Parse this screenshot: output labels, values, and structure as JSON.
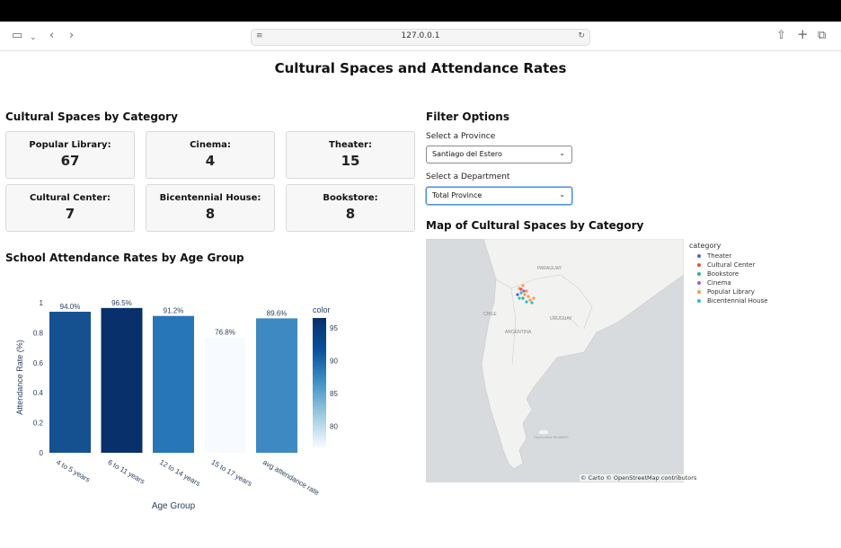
{
  "browser": {
    "url": "127.0.0.1"
  },
  "page_title": "Cultural Spaces and Attendance Rates",
  "categories_section": {
    "title": "Cultural Spaces by Category",
    "cards": [
      {
        "label": "Popular Library:",
        "value": "67"
      },
      {
        "label": "Cinema:",
        "value": "4"
      },
      {
        "label": "Theater:",
        "value": "15"
      },
      {
        "label": "Cultural Center:",
        "value": "7"
      },
      {
        "label": "Bicentennial House:",
        "value": "8"
      },
      {
        "label": "Bookstore:",
        "value": "8"
      }
    ]
  },
  "filters": {
    "title": "Filter Options",
    "province_label": "Select a Province",
    "province_value": "Santiago del Estero",
    "department_label": "Select a Department",
    "department_value": "Total Province"
  },
  "map_section": {
    "title": "Map of Cultural Spaces by Category",
    "labels": {
      "paraguay": "PARAGUAY",
      "chile": "CHILE",
      "uruguay": "URUGUAY",
      "argentina": "ARGENTINA",
      "falkland": "FALKLAND ISLANDS"
    },
    "attribution": "© Carto © OpenStreetMap contributors",
    "legend_title": "category",
    "legend": [
      {
        "name": "Theater",
        "color": "#4c67c9"
      },
      {
        "name": "Cultural Center",
        "color": "#e5533c"
      },
      {
        "name": "Bookstore",
        "color": "#27b38b"
      },
      {
        "name": "Cinema",
        "color": "#a95ad6"
      },
      {
        "name": "Popular Library",
        "color": "#f99b4b"
      },
      {
        "name": "Bicentennial House",
        "color": "#2fb7d9"
      }
    ]
  },
  "attendance_section": {
    "title": "School Attendance Rates by Age Group"
  },
  "chart_data": {
    "type": "bar",
    "categories": [
      "4 to 5 years",
      "6 to 11 years",
      "12 to 14 years",
      "15 to 17 years",
      "avg attendance rate"
    ],
    "values": [
      0.94,
      0.965,
      0.912,
      0.768,
      0.896
    ],
    "data_labels": [
      "94.0%",
      "96.5%",
      "91.2%",
      "76.8%",
      "89.6%"
    ],
    "color_values": [
      94.0,
      96.5,
      91.2,
      76.8,
      89.6
    ],
    "xlabel": "Age Group",
    "ylabel": "Attendance Rate (%)",
    "ylim": [
      0,
      1
    ],
    "yticks": [
      "0",
      "0.2",
      "0.4",
      "0.6",
      "0.8",
      "1"
    ],
    "colorbar": {
      "title": "color",
      "ticks": [
        "95",
        "90",
        "85",
        "80"
      ],
      "range": [
        76.8,
        96.5
      ]
    },
    "colorscale": "Blues"
  }
}
